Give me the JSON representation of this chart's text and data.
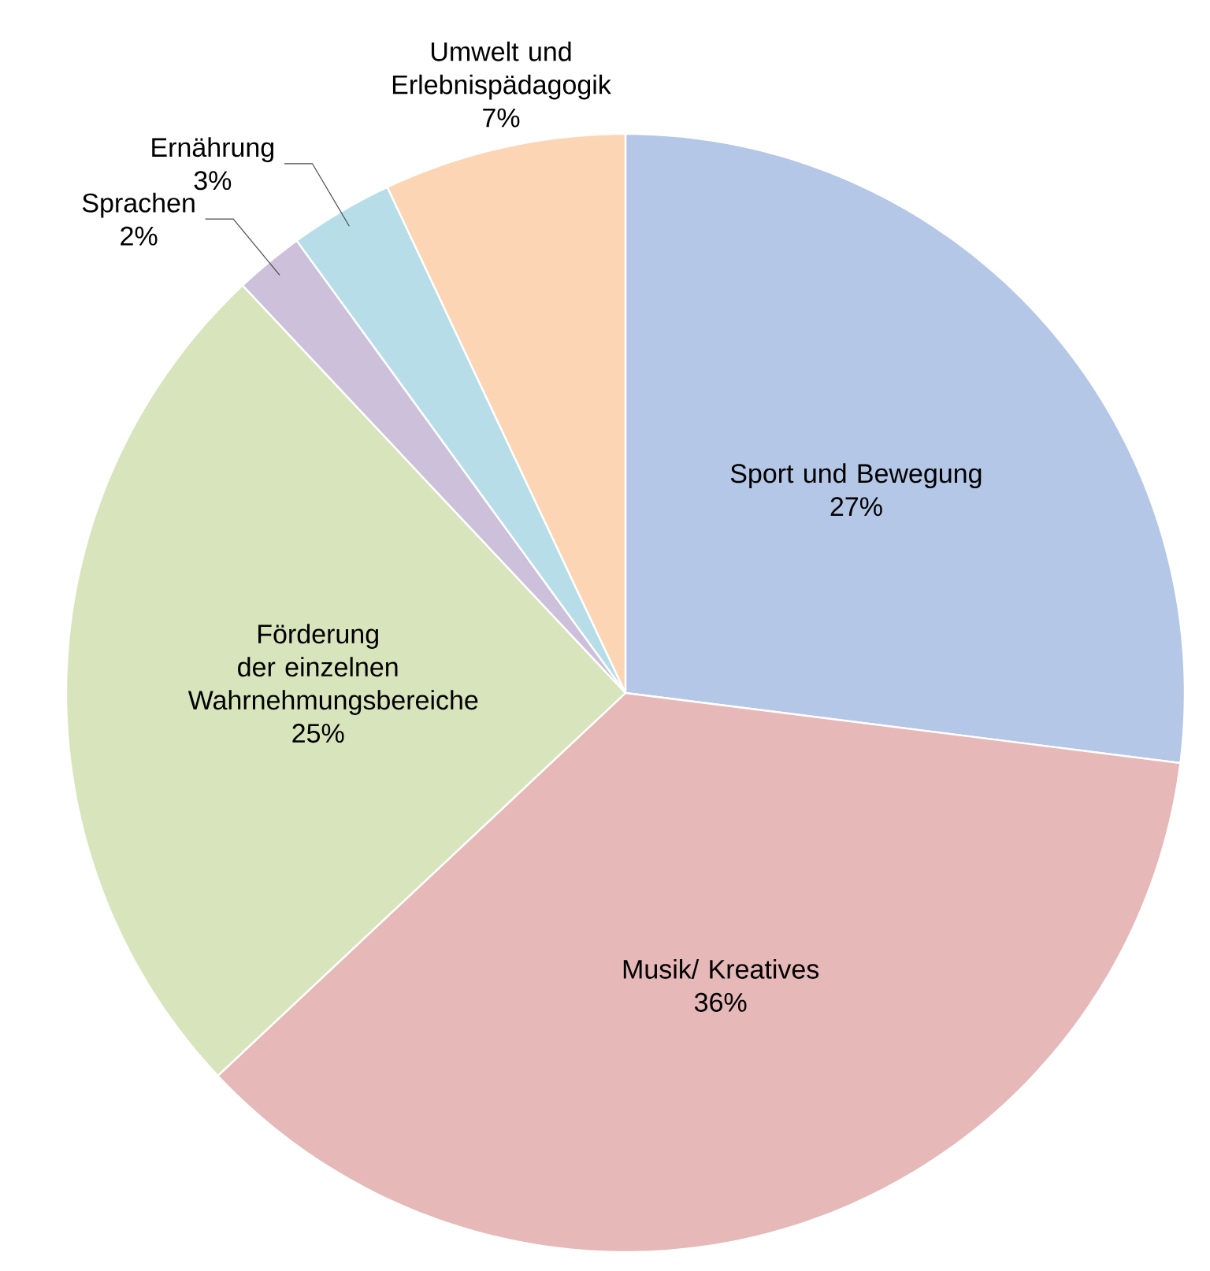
{
  "chart_data": {
    "type": "pie",
    "categories": [
      "Sport und Bewegung",
      "Musik/ Kreatives",
      "Förderung der einzelnen Wahrnehmungsbereiche",
      "Sprachen",
      "Ernährung",
      "Umwelt und Erlebnispädagogik"
    ],
    "values": [
      27,
      36,
      25,
      2,
      3,
      7
    ],
    "value_labels": [
      "27%",
      "36%",
      "25%",
      "2%",
      "3%",
      "7%"
    ],
    "colors": [
      "#b4c7e7",
      "#e6b8b7",
      "#d8e4bc",
      "#ccc0da",
      "#b7dee8",
      "#fcd5b5"
    ]
  }
}
